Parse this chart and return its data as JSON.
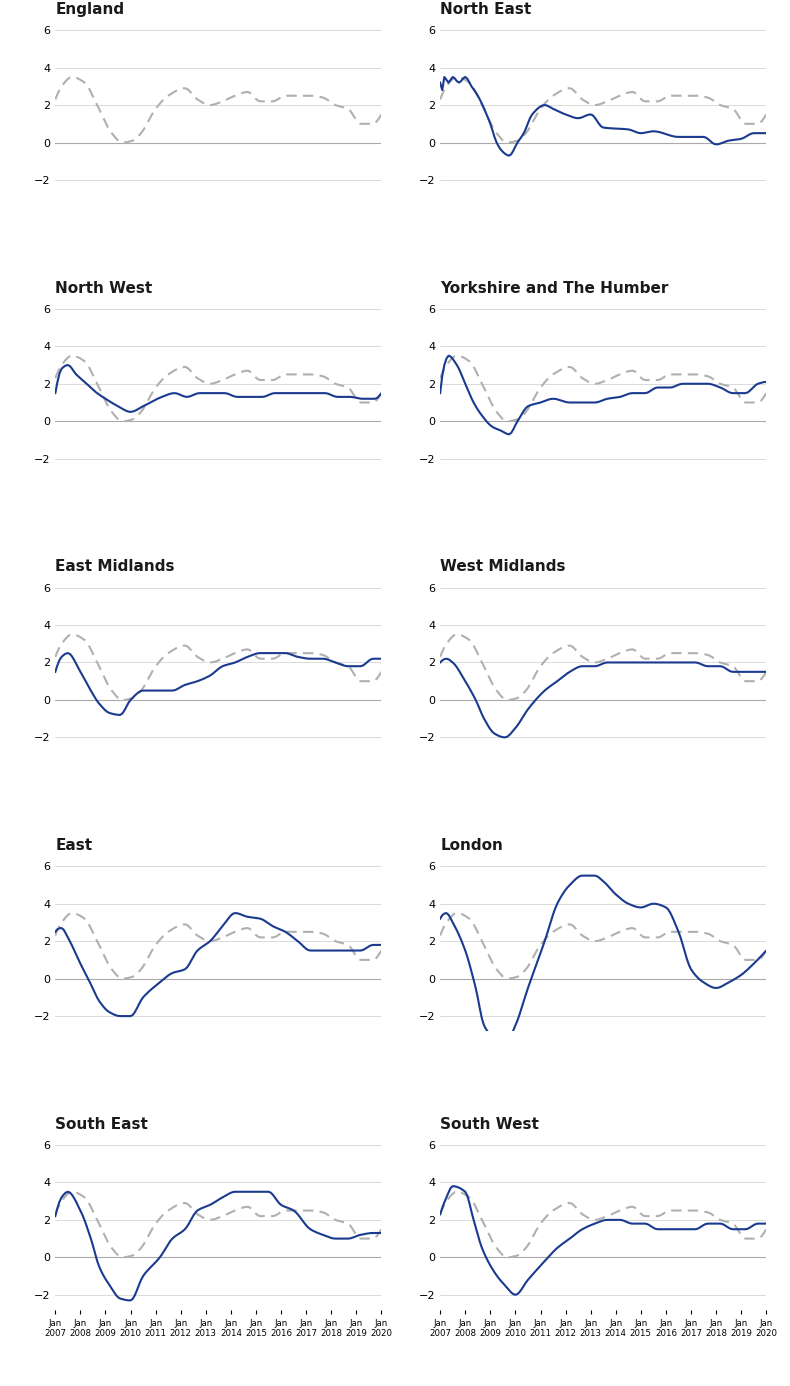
{
  "regions": [
    "England",
    "North East",
    "North West",
    "Yorkshire and The Humber",
    "East Midlands",
    "West Midlands",
    "East",
    "London",
    "South East",
    "South West"
  ],
  "ylim": [
    -2.8,
    6.5
  ],
  "yticks": [
    -2,
    0,
    2,
    4,
    6
  ],
  "line_color": "#1a3a8f",
  "dashed_color": "#b0b0b0",
  "title_color": "#1a1a1a",
  "background": "#ffffff",
  "n_points": 157
}
